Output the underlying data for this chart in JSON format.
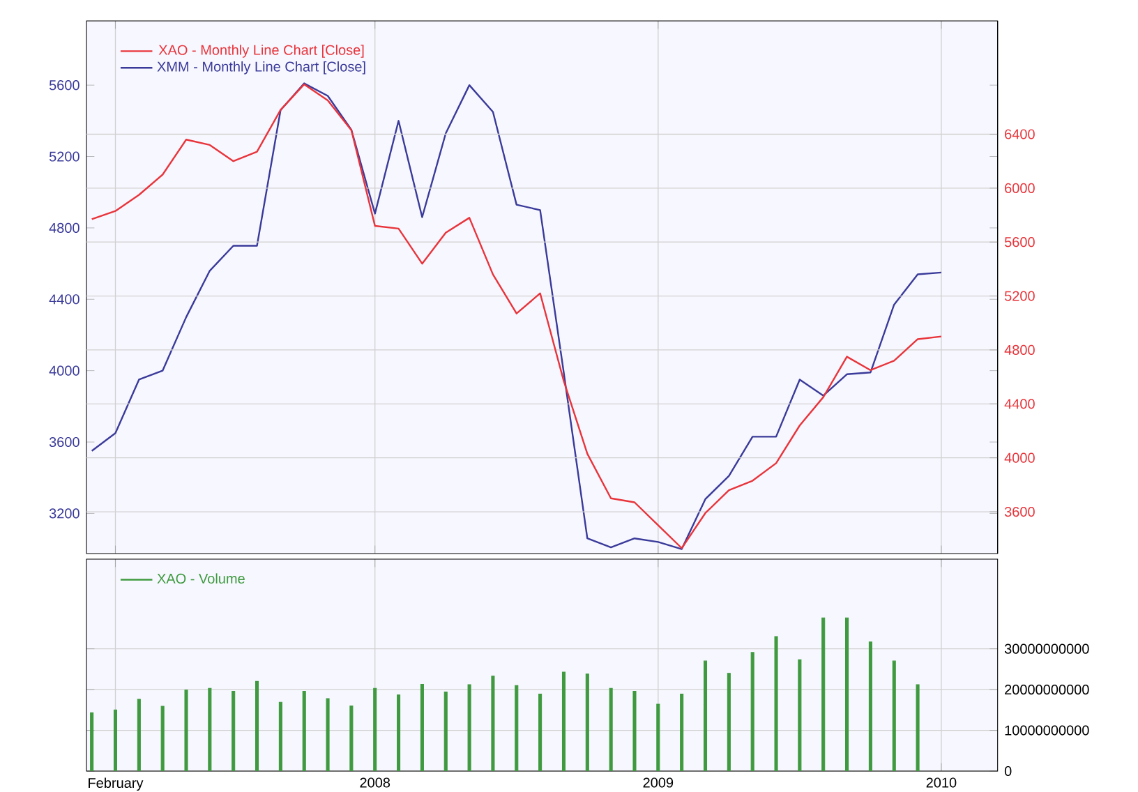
{
  "chart_data": [
    {
      "type": "line",
      "xlim": [
        "2006-12-25",
        "2010-03-13"
      ],
      "ylim": [
        2975,
        5960
      ],
      "y2lim": [
        3290,
        7240
      ],
      "xticks": [
        {
          "value": "2007-02",
          "label": null
        },
        {
          "value": "2008",
          "label": null
        },
        {
          "value": "2009",
          "label": null
        },
        {
          "value": "2010",
          "label": null
        }
      ],
      "yticks": [
        3200,
        3600,
        4000,
        4400,
        4800,
        5200,
        5600
      ],
      "y2ticks": [
        3600,
        4000,
        4400,
        4800,
        5200,
        5600,
        6000,
        6400
      ],
      "grid": true,
      "legend": "top left",
      "tick_labels": "y",
      "series": [
        {
          "name": "XAO - Monthly Line Chart [Close]",
          "color": "#e8343a",
          "axis": "y2",
          "x": [
            "2007-01",
            "2007-02",
            "2007-03",
            "2007-04",
            "2007-05",
            "2007-06",
            "2007-07",
            "2007-08",
            "2007-09",
            "2007-10",
            "2007-11",
            "2007-12",
            "2008-01",
            "2008-02",
            "2008-03",
            "2008-04",
            "2008-05",
            "2008-06",
            "2008-07",
            "2008-08",
            "2008-09",
            "2008-10",
            "2008-11",
            "2008-12",
            "2009-01",
            "2009-02",
            "2009-03",
            "2009-04",
            "2009-05",
            "2009-06",
            "2009-07",
            "2009-08",
            "2009-09",
            "2009-10",
            "2009-11",
            "2009-12",
            "2010-01"
          ],
          "values": [
            5770,
            5830,
            5950,
            6100,
            6360,
            6320,
            6200,
            6270,
            6580,
            6770,
            6650,
            6430,
            5720,
            5700,
            5440,
            5670,
            5780,
            5360,
            5070,
            5220,
            4570,
            4030,
            3700,
            3670,
            3500,
            3330,
            3590,
            3760,
            3830,
            3960,
            4240,
            4450,
            4750,
            4650,
            4720,
            4880,
            4900
          ]
        },
        {
          "name": "XMM - Monthly Line Chart [Close]",
          "color": "#3a3a9a",
          "axis": "y",
          "x": [
            "2007-01",
            "2007-02",
            "2007-03",
            "2007-04",
            "2007-05",
            "2007-06",
            "2007-07",
            "2007-08",
            "2007-09",
            "2007-10",
            "2007-11",
            "2007-12",
            "2008-01",
            "2008-02",
            "2008-03",
            "2008-04",
            "2008-05",
            "2008-06",
            "2008-07",
            "2008-08",
            "2008-09",
            "2008-10",
            "2008-11",
            "2008-12",
            "2009-01",
            "2009-02",
            "2009-03",
            "2009-04",
            "2009-05",
            "2009-06",
            "2009-07",
            "2009-08",
            "2009-09",
            "2009-10",
            "2009-11",
            "2009-12",
            "2010-01"
          ],
          "values": [
            3550,
            3650,
            3950,
            4000,
            4300,
            4560,
            4700,
            4700,
            5460,
            5610,
            5540,
            5350,
            4880,
            5400,
            4860,
            5330,
            5600,
            5450,
            4930,
            4900,
            3990,
            3060,
            3010,
            3060,
            3040,
            3000,
            3280,
            3410,
            3630,
            3630,
            3950,
            3860,
            3980,
            3990,
            4370,
            4540,
            4550
          ]
        }
      ]
    },
    {
      "type": "bar",
      "xlim": [
        "2006-12-25",
        "2010-03-13"
      ],
      "ylim": [
        0,
        52000000000
      ],
      "xticks": [
        {
          "value": "2007-02",
          "label": "February"
        },
        {
          "value": "2008",
          "label": "2008"
        },
        {
          "value": "2009",
          "label": "2009"
        },
        {
          "value": "2010",
          "label": "2010"
        }
      ],
      "yticks": [
        0,
        10000000000,
        20000000000,
        30000000000
      ],
      "grid": true,
      "legend": "top left",
      "series": [
        {
          "name": "XAO - Volume",
          "color": "#3f9a3f",
          "x": [
            "2007-01",
            "2007-02",
            "2007-03",
            "2007-04",
            "2007-05",
            "2007-06",
            "2007-07",
            "2007-08",
            "2007-09",
            "2007-10",
            "2007-11",
            "2007-12",
            "2008-01",
            "2008-02",
            "2008-03",
            "2008-04",
            "2008-05",
            "2008-06",
            "2008-07",
            "2008-08",
            "2008-09",
            "2008-10",
            "2008-11",
            "2008-12",
            "2009-01",
            "2009-02",
            "2009-03",
            "2009-04",
            "2009-05",
            "2009-06",
            "2009-07",
            "2009-08",
            "2009-09",
            "2009-10",
            "2009-11",
            "2009-12"
          ],
          "values": [
            14300000000,
            15000000000,
            17600000000,
            15900000000,
            19900000000,
            20300000000,
            19600000000,
            22000000000,
            16900000000,
            19600000000,
            17800000000,
            16000000000,
            20300000000,
            18700000000,
            21300000000,
            19400000000,
            21200000000,
            23300000000,
            21000000000,
            18900000000,
            24300000000,
            23800000000,
            20300000000,
            19600000000,
            16400000000,
            18900000000,
            27000000000,
            24000000000,
            29100000000,
            33000000000,
            27300000000,
            37600000000,
            37600000000,
            31700000000,
            27000000000,
            21200000000
          ]
        }
      ]
    }
  ]
}
